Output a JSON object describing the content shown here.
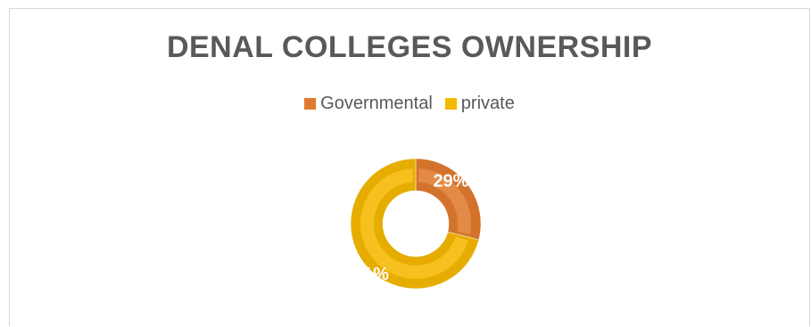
{
  "chart_data": {
    "type": "pie",
    "title": "DENAL COLLEGES OWNERSHIP",
    "legend_position": "top",
    "categories": [
      "Governmental",
      "private"
    ],
    "values": [
      29,
      71
    ],
    "data_labels": [
      "29%",
      "71%"
    ],
    "colors": [
      "#E07A2E",
      "#F5B800"
    ],
    "style": "doughnut"
  }
}
